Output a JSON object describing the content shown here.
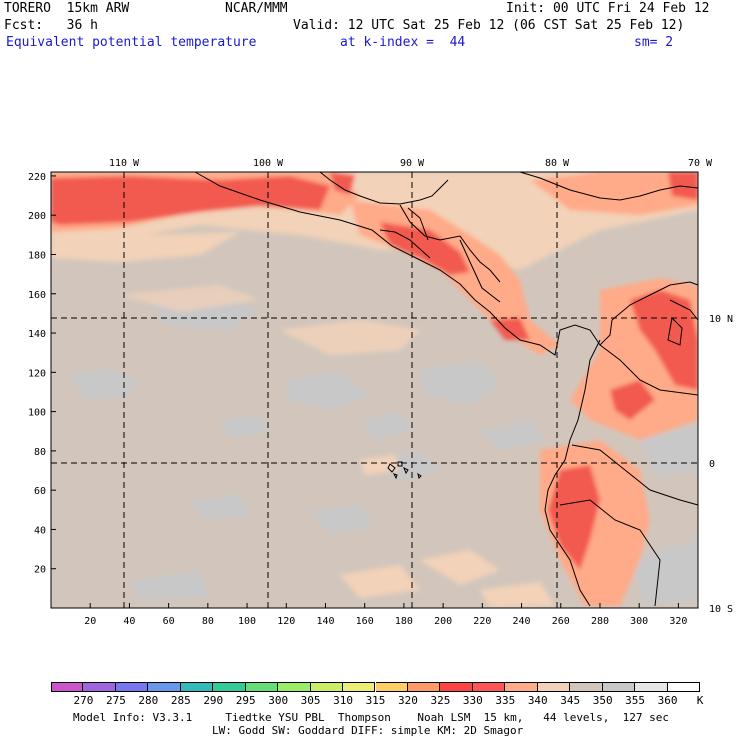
{
  "header": {
    "model": "TORERO  15km ARW",
    "org": "NCAR/MMM",
    "init": "Init: 00 UTC Fri 24 Feb 12",
    "fcst": "Fcst:   36 h",
    "valid": "Valid: 12 UTC Sat 25 Feb 12 (06 CST Sat 25 Feb 12)",
    "field": "Equivalent potential temperature",
    "level": "at k-index =  44",
    "smooth": "sm= 2"
  },
  "map": {
    "lon_labels": [
      "110 W",
      "100 W",
      "90 W",
      "80 W",
      "70 W"
    ],
    "lat_labels": [
      "10 N",
      "0",
      "10 S"
    ],
    "x_ticks": [
      "20",
      "40",
      "60",
      "80",
      "100",
      "120",
      "140",
      "160",
      "180",
      "200",
      "220",
      "240",
      "260",
      "280",
      "300",
      "320"
    ],
    "y_ticks": [
      "220",
      "200",
      "180",
      "160",
      "140",
      "120",
      "100",
      "80",
      "60",
      "40",
      "20"
    ]
  },
  "colorbar": {
    "unit": "K",
    "labels": [
      "270",
      "275",
      "280",
      "285",
      "290",
      "295",
      "300",
      "305",
      "310",
      "315",
      "320",
      "325",
      "330",
      "335",
      "340",
      "345",
      "350",
      "355",
      "360"
    ],
    "colors": [
      "#cc55cc",
      "#a066dd",
      "#7777ee",
      "#6699ee",
      "#33bbbb",
      "#33cc99",
      "#66dd77",
      "#99ee66",
      "#ccee66",
      "#eeee77",
      "#ffcc66",
      "#ff9966",
      "#ff4444",
      "#ff5555",
      "#ffaa88",
      "#f2d2b8",
      "#d2c6bc",
      "#c8c8c8",
      "#e6e6e6",
      "#ffffff"
    ]
  },
  "footer": {
    "line1": "Model Info: V3.3.1     Tiedtke YSU PBL  Thompson    Noah LSM  15 km,   44 levels,  127 sec",
    "line2": "LW: Godd SW: Goddard DIFF: simple KM: 2D Smagor"
  }
}
